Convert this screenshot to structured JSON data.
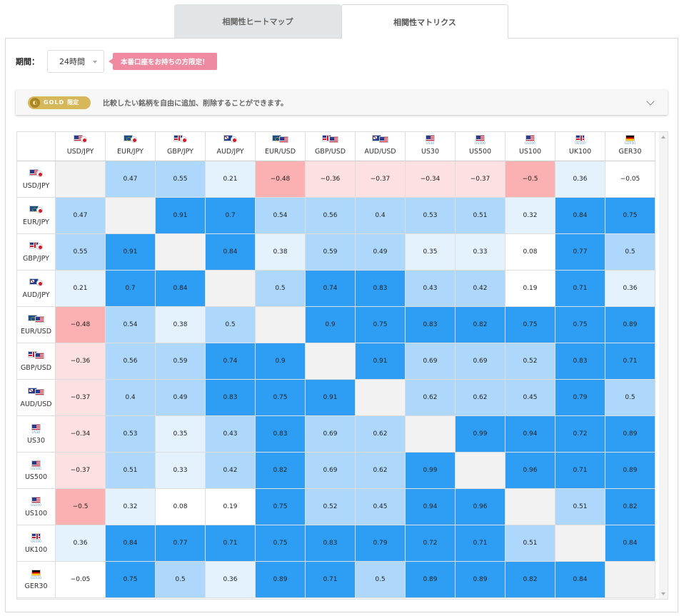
{
  "tabs": {
    "heatmap_label": "相関性ヒートマップ",
    "matrix_label": "相関性マトリクス"
  },
  "period": {
    "label": "期間：",
    "value": "24時間",
    "badge": "本番口座をお持ちの方限定！"
  },
  "gold": {
    "word": "GOLD",
    "limited": "限定",
    "description": "比較したい銘柄を自由に追加、削除することができます。"
  },
  "colors": {
    "strong_blue": "#2e9ef5",
    "medium_blue": "#aed8fb",
    "light_blue": "#e4f2fd",
    "light_red": "#fde0e1",
    "medium_red": "#fbb0b2",
    "badge_pink": "#f08aa0",
    "gold": "#d6b75a"
  },
  "symbols": [
    {
      "label": "USD/JPY",
      "flags": [
        "f-us",
        "f-jp f-jp-round"
      ],
      "sub": ""
    },
    {
      "label": "EUR/JPY",
      "flags": [
        "f-eu",
        "f-jp f-jp-round"
      ],
      "sub": ""
    },
    {
      "label": "GBP/JPY",
      "flags": [
        "f-gb",
        "f-jp f-jp-round"
      ],
      "sub": ""
    },
    {
      "label": "AUD/JPY",
      "flags": [
        "f-au",
        "f-jp f-jp-round"
      ],
      "sub": ""
    },
    {
      "label": "EUR/USD",
      "flags": [
        "f-eu",
        "f-us"
      ],
      "sub": ""
    },
    {
      "label": "GBP/USD",
      "flags": [
        "f-gb",
        "f-us"
      ],
      "sub": ""
    },
    {
      "label": "AUD/USD",
      "flags": [
        "f-au",
        "f-us"
      ],
      "sub": ""
    },
    {
      "label": "US30",
      "flags": [
        "f-us"
      ],
      "sub": "US30"
    },
    {
      "label": "US500",
      "flags": [
        "f-us"
      ],
      "sub": "US500"
    },
    {
      "label": "US100",
      "flags": [
        "f-us"
      ],
      "sub": "US100"
    },
    {
      "label": "UK100",
      "flags": [
        "f-gb"
      ],
      "sub": "UK100"
    },
    {
      "label": "GER30",
      "flags": [
        "f-de"
      ],
      "sub": "GER30"
    }
  ],
  "matrix": [
    [
      null,
      "0.47",
      "0.55",
      "0.21",
      "−0.48",
      "−0.36",
      "−0.37",
      "−0.34",
      "−0.37",
      "−0.5",
      "0.36",
      "−0.05"
    ],
    [
      "0.47",
      null,
      "0.91",
      "0.7",
      "0.54",
      "0.56",
      "0.4",
      "0.53",
      "0.51",
      "0.32",
      "0.84",
      "0.75"
    ],
    [
      "0.55",
      "0.91",
      null,
      "0.84",
      "0.38",
      "0.59",
      "0.49",
      "0.35",
      "0.33",
      "0.08",
      "0.77",
      "0.5"
    ],
    [
      "0.21",
      "0.7",
      "0.84",
      null,
      "0.5",
      "0.74",
      "0.83",
      "0.43",
      "0.42",
      "0.19",
      "0.71",
      "0.36"
    ],
    [
      "−0.48",
      "0.54",
      "0.38",
      "0.5",
      null,
      "0.9",
      "0.75",
      "0.83",
      "0.82",
      "0.75",
      "0.75",
      "0.89"
    ],
    [
      "−0.36",
      "0.56",
      "0.59",
      "0.74",
      "0.9",
      null,
      "0.91",
      "0.69",
      "0.69",
      "0.52",
      "0.83",
      "0.71"
    ],
    [
      "−0.37",
      "0.4",
      "0.49",
      "0.83",
      "0.75",
      "0.91",
      null,
      "0.62",
      "0.62",
      "0.45",
      "0.79",
      "0.5"
    ],
    [
      "−0.34",
      "0.53",
      "0.35",
      "0.43",
      "0.83",
      "0.69",
      "0.62",
      null,
      "0.99",
      "0.94",
      "0.72",
      "0.89"
    ],
    [
      "−0.37",
      "0.51",
      "0.33",
      "0.42",
      "0.82",
      "0.69",
      "0.62",
      "0.99",
      null,
      "0.96",
      "0.71",
      "0.89"
    ],
    [
      "−0.5",
      "0.32",
      "0.08",
      "0.19",
      "0.75",
      "0.52",
      "0.45",
      "0.94",
      "0.96",
      null,
      "0.51",
      "0.82"
    ],
    [
      "0.36",
      "0.84",
      "0.77",
      "0.71",
      "0.75",
      "0.83",
      "0.79",
      "0.72",
      "0.71",
      "0.51",
      null,
      "0.84"
    ],
    [
      "−0.05",
      "0.75",
      "0.5",
      "0.36",
      "0.89",
      "0.71",
      "0.5",
      "0.89",
      "0.89",
      "0.82",
      "0.84",
      null
    ]
  ],
  "levels": [
    [
      null,
      "mb",
      "mb",
      "lb",
      "mr",
      "lr",
      "lr",
      "lr",
      "lr",
      "mr",
      "lb",
      "w"
    ],
    [
      "mb",
      null,
      "sb",
      "sb",
      "mb",
      "mb",
      "mb",
      "mb",
      "mb",
      "lb",
      "sb",
      "sb"
    ],
    [
      "mb",
      "sb",
      null,
      "sb",
      "lb",
      "mb",
      "mb",
      "lb",
      "lb",
      "w",
      "sb",
      "mb"
    ],
    [
      "lb",
      "sb",
      "sb",
      null,
      "mb",
      "sb",
      "sb",
      "mb",
      "mb",
      "w",
      "sb",
      "lb"
    ],
    [
      "mr",
      "mb",
      "lb",
      "mb",
      null,
      "sb",
      "sb",
      "sb",
      "sb",
      "sb",
      "sb",
      "sb"
    ],
    [
      "lr",
      "mb",
      "mb",
      "sb",
      "sb",
      null,
      "sb",
      "mb",
      "mb",
      "mb",
      "sb",
      "sb"
    ],
    [
      "lr",
      "mb",
      "mb",
      "sb",
      "sb",
      "sb",
      null,
      "mb",
      "mb",
      "mb",
      "sb",
      "mb"
    ],
    [
      "lr",
      "mb",
      "lb",
      "mb",
      "sb",
      "mb",
      "mb",
      null,
      "sb",
      "sb",
      "sb",
      "sb"
    ],
    [
      "lr",
      "mb",
      "lb",
      "mb",
      "sb",
      "mb",
      "mb",
      "sb",
      null,
      "sb",
      "sb",
      "sb"
    ],
    [
      "mr",
      "lb",
      "w",
      "w",
      "sb",
      "mb",
      "mb",
      "sb",
      "sb",
      null,
      "mb",
      "sb"
    ],
    [
      "lb",
      "sb",
      "sb",
      "sb",
      "sb",
      "sb",
      "sb",
      "sb",
      "sb",
      "mb",
      null,
      "sb"
    ],
    [
      "w",
      "sb",
      "mb",
      "lb",
      "sb",
      "sb",
      "mb",
      "sb",
      "sb",
      "sb",
      "sb",
      null
    ]
  ]
}
